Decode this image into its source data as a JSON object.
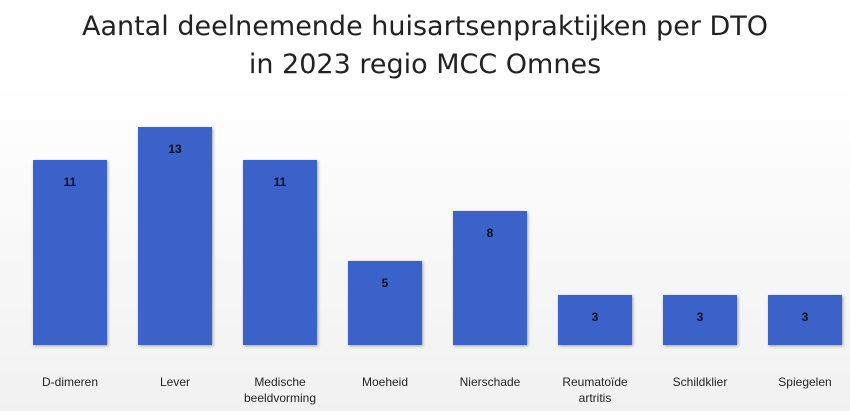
{
  "chart_data": {
    "type": "bar",
    "title": "Aantal deelnemende huisartsenpraktijken per DTO in 2023 regio MCC Omnes",
    "categories": [
      "D-dimeren",
      "Lever",
      "Medische beeldvorming",
      "Moeheid",
      "Nierschade",
      "Reumatoïde artritis",
      "Schildklier",
      "Spiegelen"
    ],
    "values": [
      11,
      13,
      11,
      5,
      8,
      3,
      3,
      3
    ],
    "color": "#3a62c9"
  }
}
